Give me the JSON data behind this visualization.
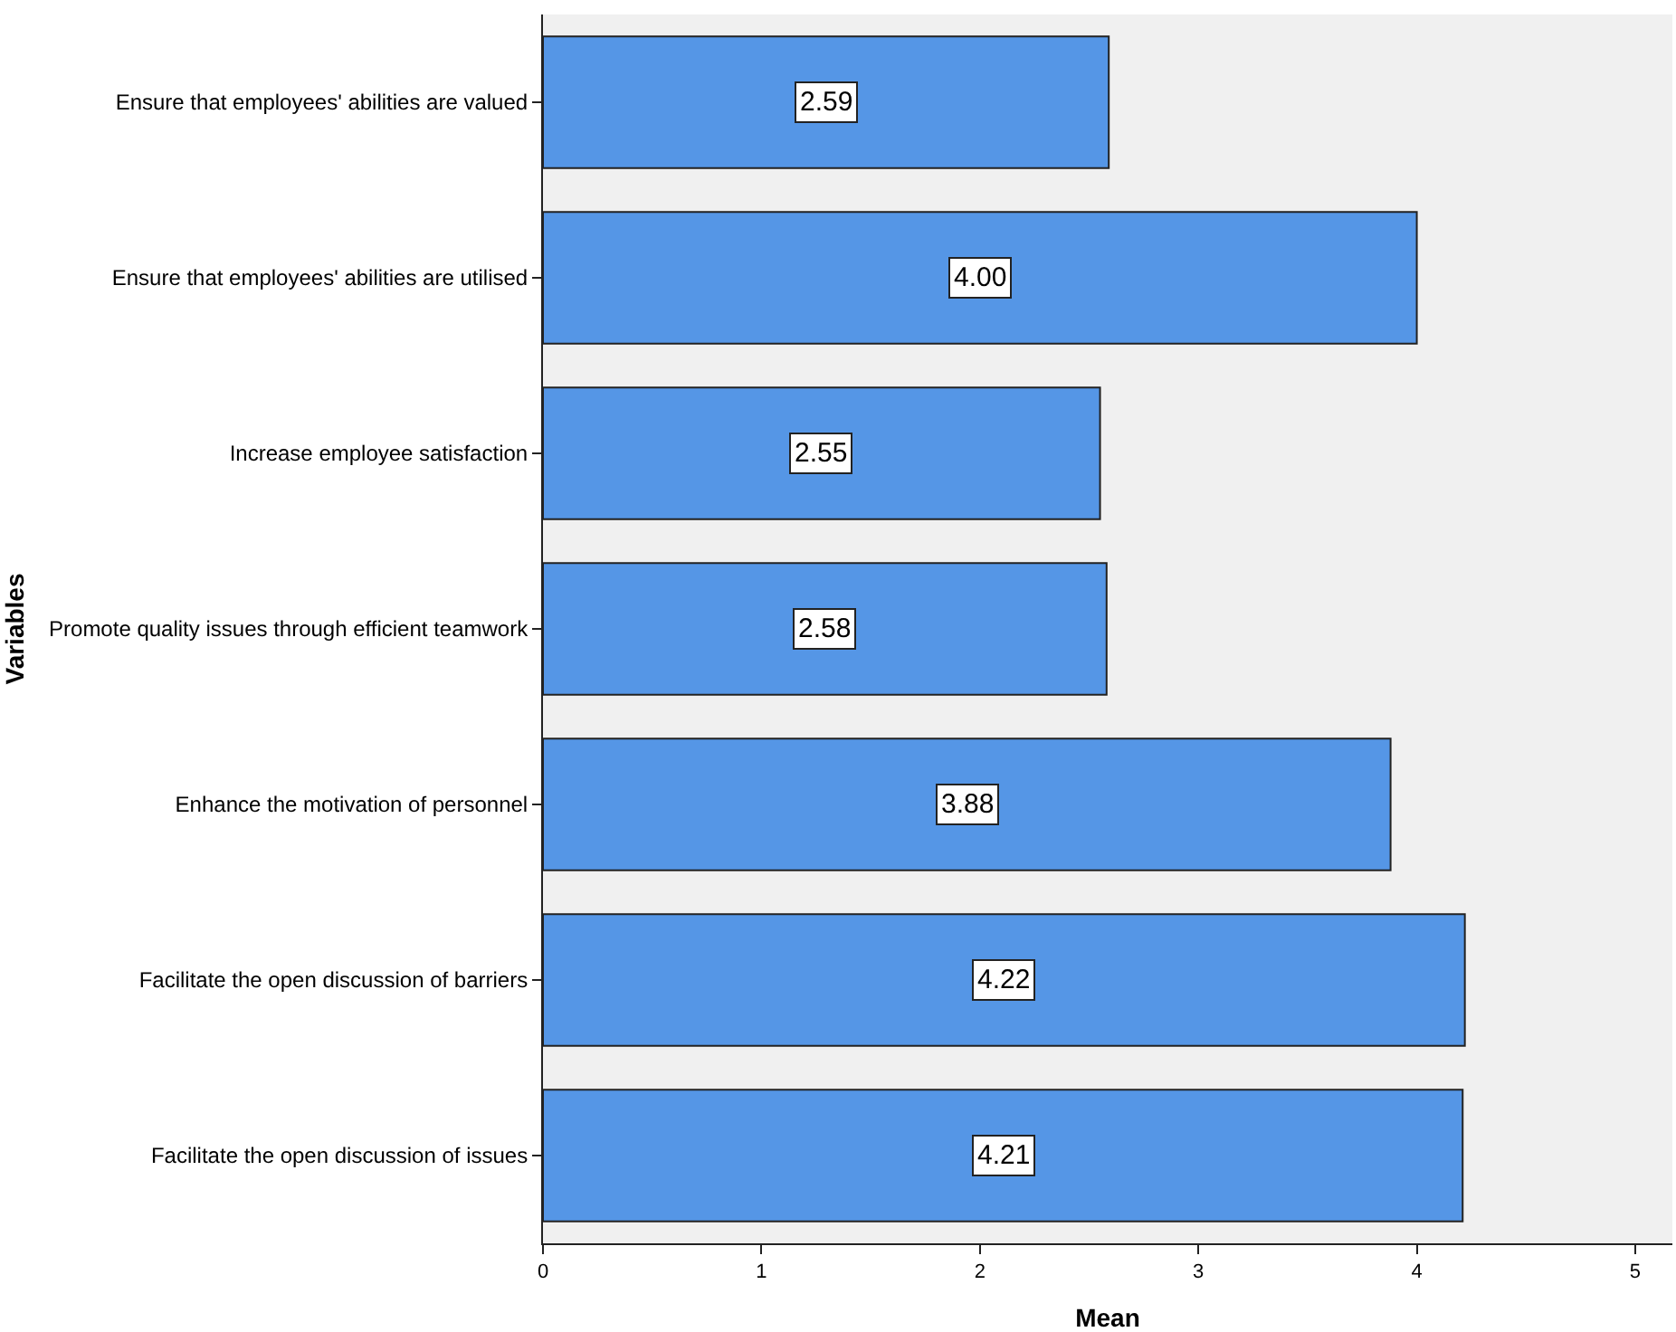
{
  "chart_data": {
    "type": "bar",
    "orientation": "horizontal",
    "xlabel": "Mean",
    "ylabel": "Variables",
    "categories": [
      "Ensure that employees' abilities are valued",
      "Ensure that employees' abilities are utilised",
      "Increase employee satisfaction",
      "Promote quality issues through efficient teamwork",
      "Enhance the motivation of personnel",
      "Facilitate the open discussion of barriers",
      "Facilitate the open discussion of issues"
    ],
    "values": [
      2.59,
      4.0,
      2.55,
      2.58,
      3.88,
      4.22,
      4.21
    ],
    "value_labels": [
      "2.59",
      "4.00",
      "2.55",
      "2.58",
      "3.88",
      "4.22",
      "4.21"
    ],
    "color": "#5596e6",
    "xlim": [
      0,
      5.17
    ],
    "xticks": [
      0,
      1,
      2,
      3,
      4,
      5
    ],
    "grid": false,
    "legend": false
  }
}
